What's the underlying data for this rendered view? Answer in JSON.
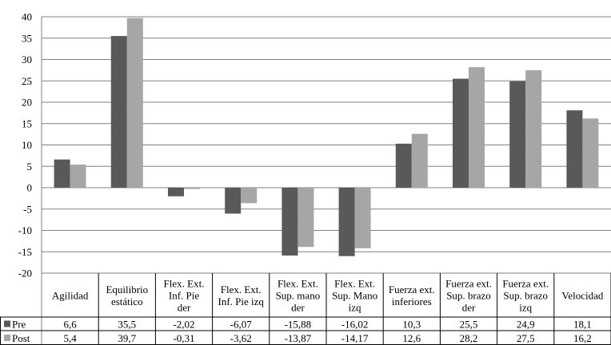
{
  "chart_data": {
    "type": "bar",
    "title": "",
    "xlabel": "",
    "ylabel": "",
    "ylim": [
      -20,
      40
    ],
    "yticks": [
      40,
      35,
      30,
      25,
      20,
      15,
      10,
      5,
      0,
      -5,
      -10,
      -15,
      -20
    ],
    "grid": true,
    "legend": "left of data table",
    "colors": {
      "Pre": "#595959",
      "Post": "#a6a6a6",
      "grid": "#808080",
      "axis": "#808080"
    },
    "categories": [
      [
        "Agilidad"
      ],
      [
        "Equilibrio",
        "estático"
      ],
      [
        "Flex. Ext.",
        "Inf. Pie",
        "der"
      ],
      [
        "Flex. Ext.",
        "Inf. Pie izq"
      ],
      [
        "Flex. Ext.",
        "Sup. mano",
        "der"
      ],
      [
        "Flex. Ext.",
        "Sup. Mano",
        "izq"
      ],
      [
        "Fuerza ext.",
        "inferiores"
      ],
      [
        "Fuerza ext.",
        "Sup. brazo",
        "der"
      ],
      [
        "Fuerza ext.",
        "Sup. brazo",
        "izq"
      ],
      [
        "Velocidad"
      ]
    ],
    "series": [
      {
        "name": "Pre",
        "color": "#595959",
        "values": [
          6.6,
          35.5,
          -2.02,
          -6.07,
          -15.88,
          -16.02,
          10.3,
          25.5,
          24.9,
          18.1
        ],
        "labels": [
          "6,6",
          "35,5",
          "-2,02",
          "-6,07",
          "-15,88",
          "-16,02",
          "10,3",
          "25,5",
          "24,9",
          "18,1"
        ]
      },
      {
        "name": "Post",
        "color": "#a6a6a6",
        "values": [
          5.4,
          39.7,
          -0.31,
          -3.62,
          -13.87,
          -14.17,
          12.6,
          28.2,
          27.5,
          16.2
        ],
        "labels": [
          "5,4",
          "39,7",
          "-0,31",
          "-3,62",
          "-13,87",
          "-14,17",
          "12,6",
          "28,2",
          "27,5",
          "16,2"
        ]
      }
    ]
  }
}
